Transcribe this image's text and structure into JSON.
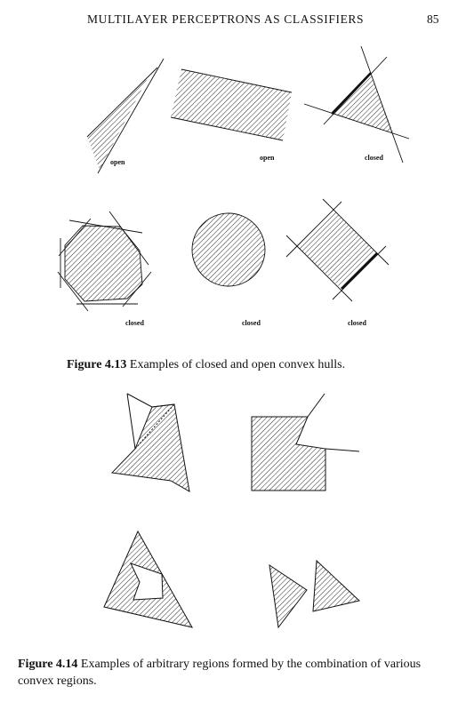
{
  "header": {
    "running_title": "MULTILAYER PERCEPTRONS AS CLASSIFIERS",
    "page_number": "85"
  },
  "figure_4_13": {
    "labels": [
      "open",
      "open",
      "closed",
      "closed",
      "closed",
      "closed"
    ],
    "caption_label": "Figure 4.13",
    "caption_text": " Examples of closed and open convex hulls."
  },
  "figure_4_14": {
    "caption_label": "Figure 4.14",
    "caption_text": " Examples of arbitrary regions formed by the combination of various convex regions."
  }
}
